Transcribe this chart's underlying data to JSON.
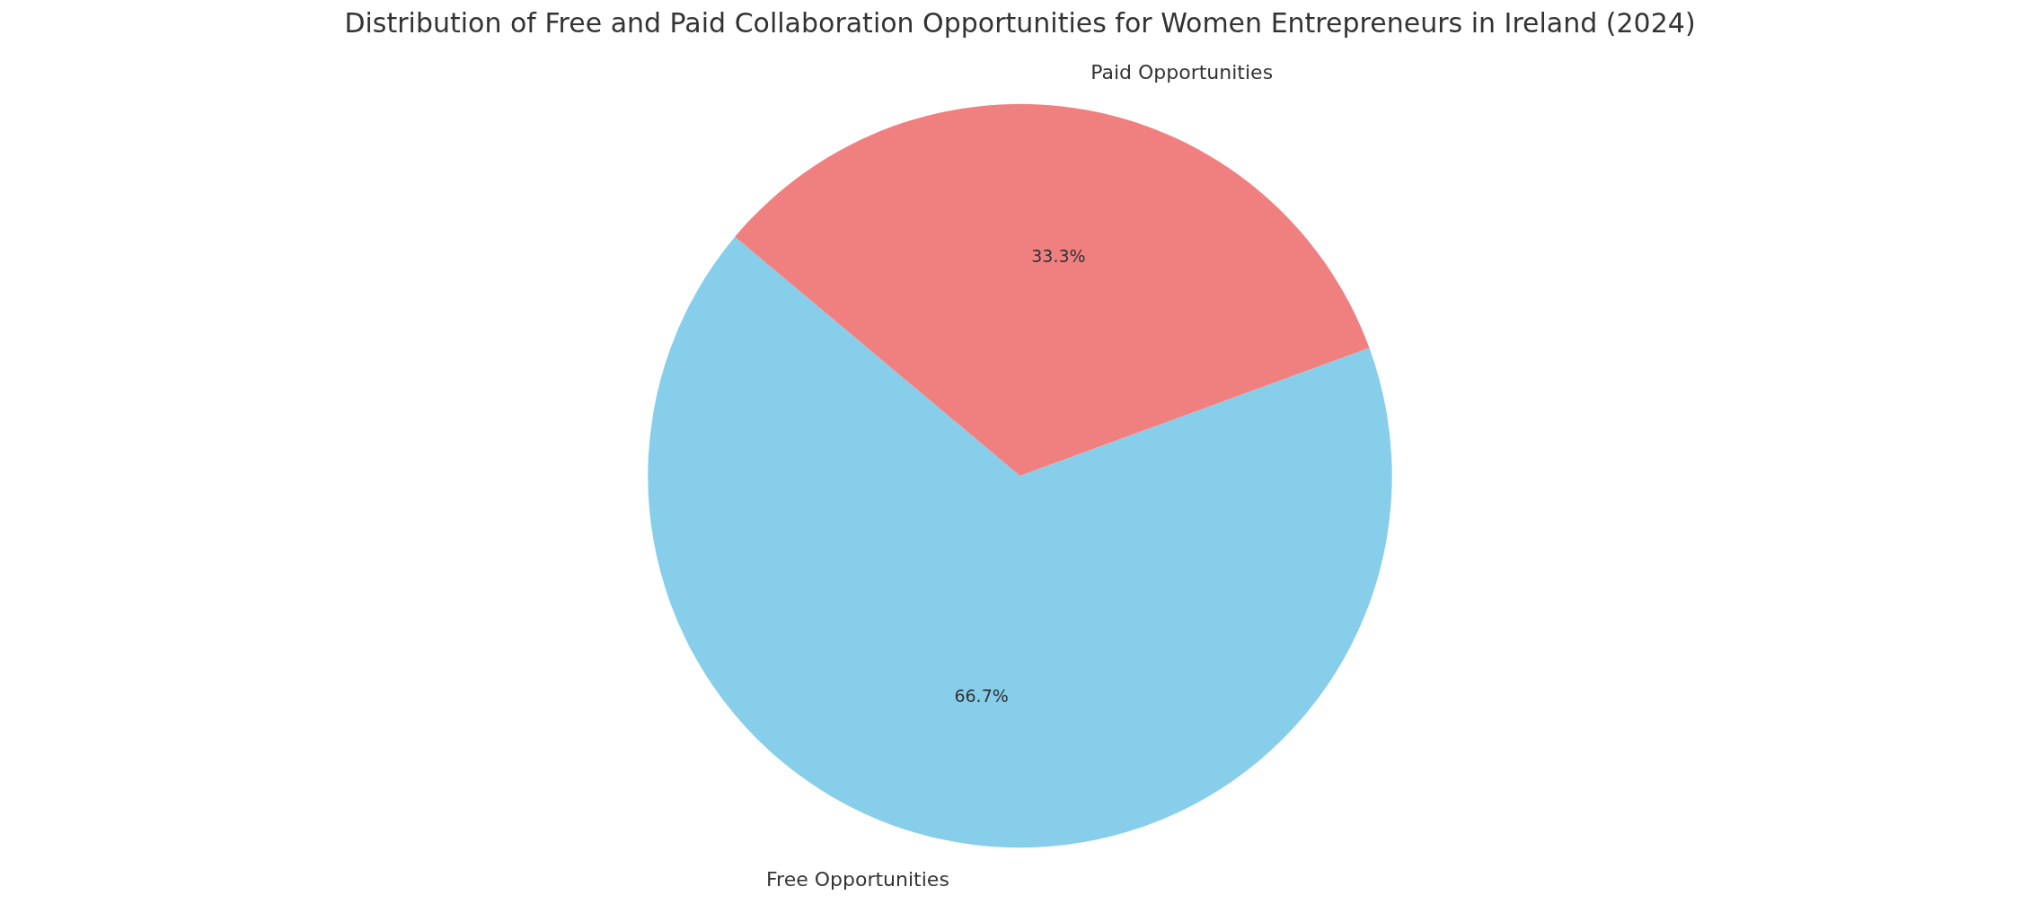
{
  "chart_data": {
    "type": "pie",
    "title": "Distribution of Free and Paid Collaboration Opportunities for Women Entrepreneurs in Ireland (2024)",
    "categories": [
      "Free Opportunities",
      "Paid Opportunities"
    ],
    "values": [
      66.7,
      33.3
    ],
    "colors": [
      "#87ceeb",
      "#f08080"
    ],
    "value_labels": [
      "66.7%",
      "33.3%"
    ]
  }
}
